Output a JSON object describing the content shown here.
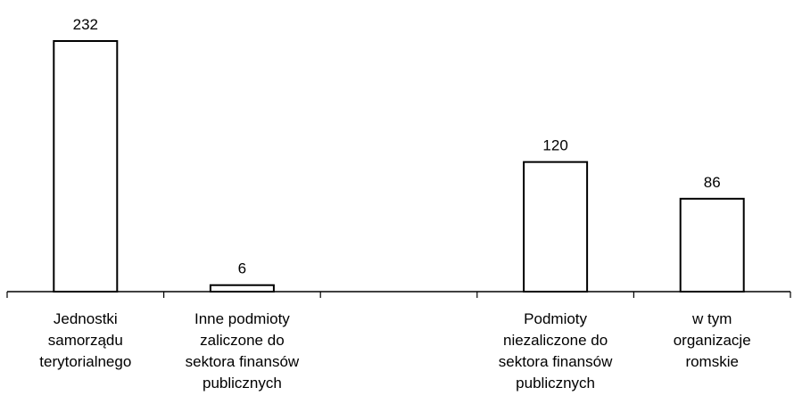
{
  "chart_data": {
    "type": "bar",
    "title": "",
    "xlabel": "",
    "ylabel": "",
    "ylim": [
      0,
      232
    ],
    "grid": false,
    "legend": "none",
    "categories": [
      "Jednostki samorządu terytorialnego",
      "Inne podmioty zaliczone do sektora finansów publicznych",
      "",
      "Podmioty niezaliczone do sektora finansów publicznych",
      "w tym organizacje romskie"
    ],
    "category_lines": [
      [
        "Jednostki",
        "samorządu",
        "terytorialnego"
      ],
      [
        "Inne podmioty",
        "zaliczone do",
        "sektora finansów",
        "publicznych"
      ],
      [],
      [
        "Podmioty",
        "niezaliczone do",
        "sektora finansów",
        "publicznych"
      ],
      [
        "w tym",
        "organizacje",
        "romskie"
      ]
    ],
    "values": [
      232,
      6,
      null,
      120,
      86
    ],
    "data_labels": [
      "232",
      "6",
      "",
      "120",
      "86"
    ],
    "colors": {
      "bar_fill": "#ffffff",
      "bar_stroke": "#000000",
      "axis": "#000000"
    }
  }
}
